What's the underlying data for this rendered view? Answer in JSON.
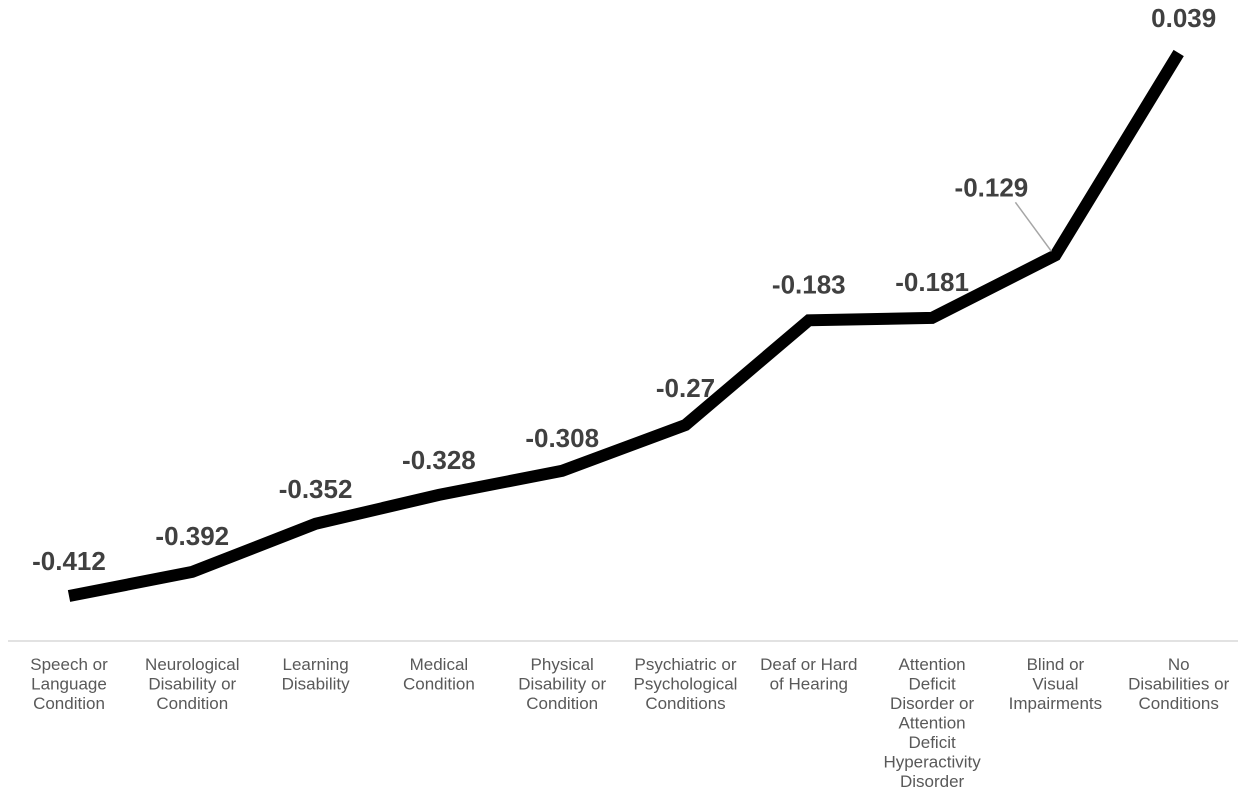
{
  "chart_data": {
    "type": "line",
    "title": "",
    "xlabel": "",
    "ylabel": "",
    "categories": [
      "Speech or Language Condition",
      "Neurological Disability or Condition",
      "Learning Disability",
      "Medical Condition",
      "Physical Disability or Condition",
      "Psychiatric or Psychological Conditions",
      "Deaf or Hard of Hearing",
      "Attention Deficit Disorder or Attention Deficit Hyperactivity Disorder",
      "Blind or Visual Impairments",
      "No Disabilities or Conditions"
    ],
    "category_label_lines": [
      [
        "Speech or",
        "Language",
        "Condition"
      ],
      [
        "Neurological",
        "Disability or",
        "Condition"
      ],
      [
        "Learning",
        "Disability"
      ],
      [
        "Medical",
        "Condition"
      ],
      [
        "Physical",
        "Disability or",
        "Condition"
      ],
      [
        "Psychiatric or",
        "Psychological",
        "Conditions"
      ],
      [
        "Deaf or Hard",
        "of Hearing"
      ],
      [
        "Attention",
        "Deficit",
        "Disorder or",
        "Attention",
        "Deficit",
        "Hyperactivity",
        "Disorder"
      ],
      [
        "Blind or",
        "Visual",
        "Impairments"
      ],
      [
        "No",
        "Disabilities or",
        "Conditions"
      ]
    ],
    "series": [
      {
        "values": [
          -0.412,
          -0.392,
          -0.352,
          -0.328,
          -0.308,
          -0.27,
          -0.183,
          -0.181,
          -0.129,
          0.039
        ],
        "labels": [
          "-0.412",
          "-0.392",
          "-0.352",
          "-0.328",
          "-0.308",
          "-0.27",
          "-0.183",
          "-0.181",
          "-0.129",
          "0.039"
        ],
        "color": "#000000"
      }
    ],
    "ylim": [
      -0.44,
      0.055
    ],
    "grid": false,
    "legend": "none",
    "axis_color": "#d9d9d9",
    "label_color": "#404040",
    "category_color": "#595959",
    "leader_line_color": "#a6a6a6"
  }
}
